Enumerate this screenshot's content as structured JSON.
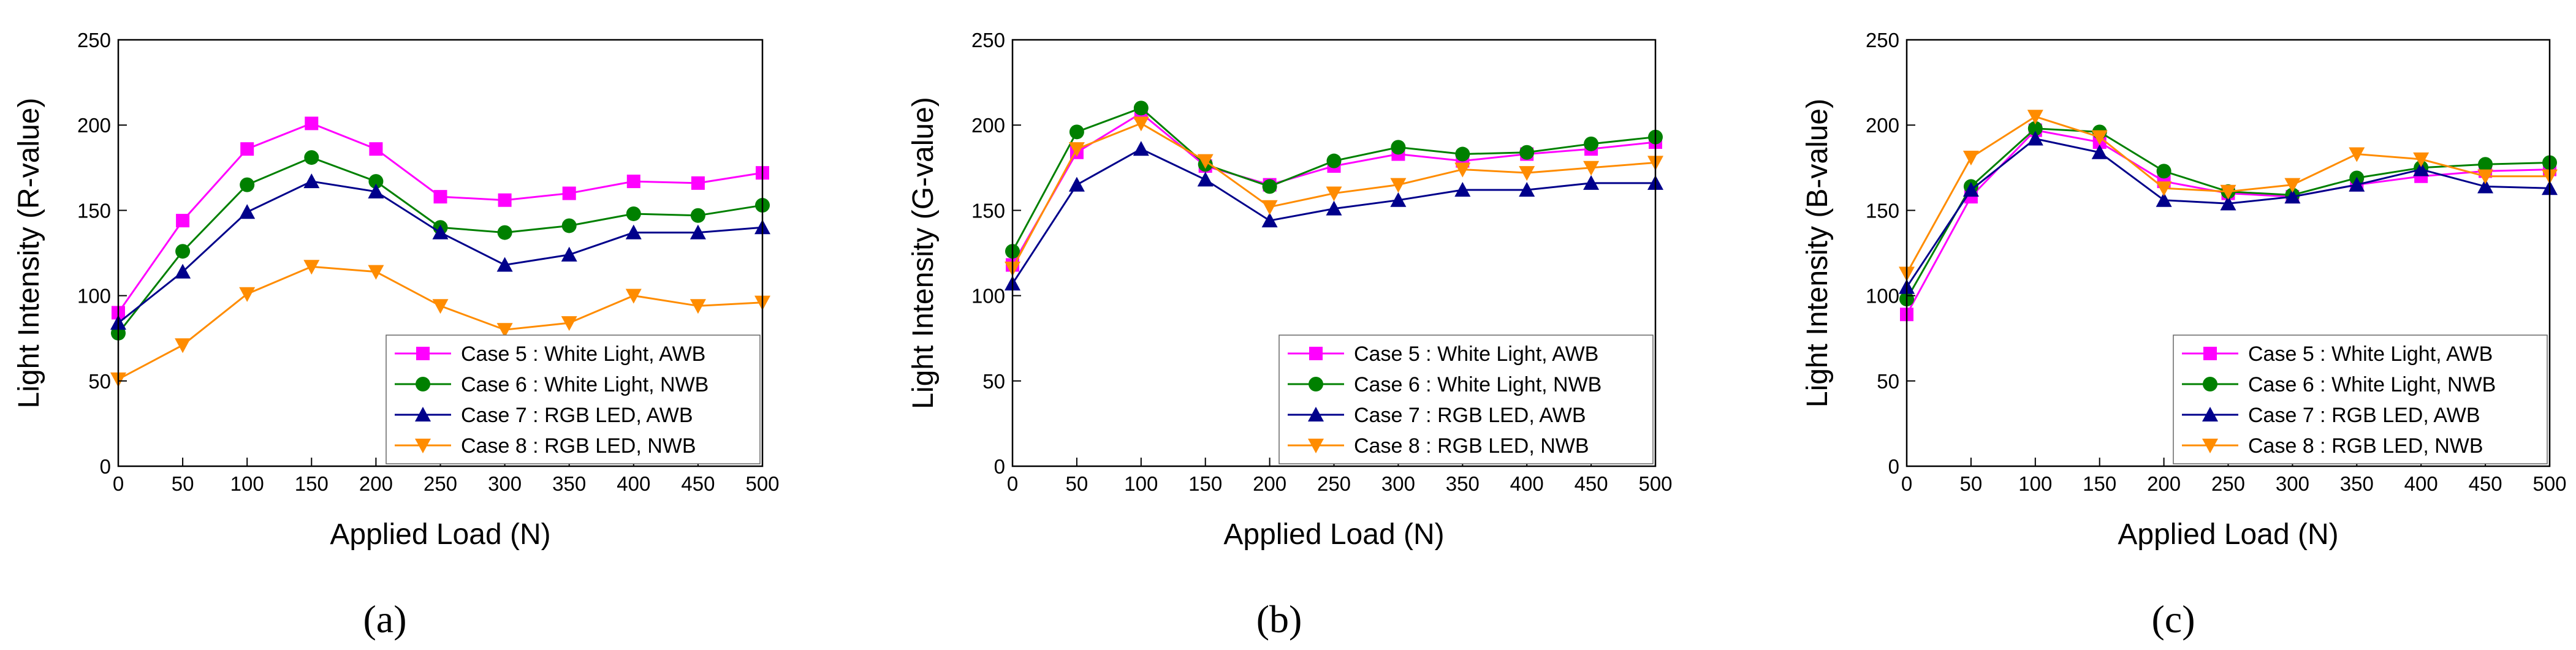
{
  "colors": {
    "case5": "#ff00ff",
    "case6": "#008000",
    "case7": "#00008b",
    "case8": "#ff8c00"
  },
  "chart_data": [
    {
      "type": "line",
      "panel_label": "(a)",
      "xlabel": "Applied Load (N)",
      "ylabel": "Light Intensity (R-value)",
      "xlim": [
        0,
        500
      ],
      "ylim": [
        0,
        250
      ],
      "xticks": [
        0,
        50,
        100,
        150,
        200,
        250,
        300,
        350,
        400,
        450,
        500
      ],
      "yticks": [
        0,
        50,
        100,
        150,
        200,
        250
      ],
      "grid": false,
      "legend_position": "bottom-right",
      "x": [
        0,
        50,
        100,
        150,
        200,
        250,
        300,
        350,
        400,
        450,
        500
      ],
      "series": [
        {
          "name": "Case 5 : White Light, AWB",
          "color": "#ff00ff",
          "marker": "square",
          "values": [
            90,
            144,
            186,
            201,
            186,
            158,
            156,
            160,
            167,
            166,
            172
          ]
        },
        {
          "name": "Case 6 : White Light, NWB",
          "color": "#008000",
          "marker": "circle",
          "values": [
            78,
            126,
            165,
            181,
            167,
            140,
            137,
            141,
            148,
            147,
            153
          ]
        },
        {
          "name": "Case 7 : RGB LED, AWB",
          "color": "#00008b",
          "marker": "triangle-up",
          "values": [
            84,
            114,
            149,
            167,
            161,
            137,
            118,
            124,
            137,
            137,
            140
          ]
        },
        {
          "name": "Case 8 : RGB LED, NWB",
          "color": "#ff8c00",
          "marker": "triangle-down",
          "values": [
            51,
            71,
            101,
            117,
            114,
            94,
            80,
            84,
            100,
            94,
            96
          ]
        }
      ]
    },
    {
      "type": "line",
      "panel_label": "(b)",
      "xlabel": "Applied Load (N)",
      "ylabel": "Light Intensity (G-value)",
      "xlim": [
        0,
        500
      ],
      "ylim": [
        0,
        250
      ],
      "xticks": [
        0,
        50,
        100,
        150,
        200,
        250,
        300,
        350,
        400,
        450,
        500
      ],
      "yticks": [
        0,
        50,
        100,
        150,
        200,
        250
      ],
      "grid": false,
      "legend_position": "bottom-right",
      "x": [
        0,
        50,
        100,
        150,
        200,
        250,
        300,
        350,
        400,
        450,
        500
      ],
      "series": [
        {
          "name": "Case 5 : White Light, AWB",
          "color": "#ff00ff",
          "marker": "square",
          "values": [
            118,
            184,
            207,
            176,
            165,
            176,
            183,
            179,
            183,
            186,
            190
          ]
        },
        {
          "name": "Case 6 : White Light, NWB",
          "color": "#008000",
          "marker": "circle",
          "values": [
            126,
            196,
            210,
            177,
            164,
            179,
            187,
            183,
            184,
            189,
            193
          ]
        },
        {
          "name": "Case 7 : RGB LED, AWB",
          "color": "#00008b",
          "marker": "triangle-up",
          "values": [
            107,
            165,
            186,
            168,
            144,
            151,
            156,
            162,
            162,
            166,
            166
          ]
        },
        {
          "name": "Case 8 : RGB LED, NWB",
          "color": "#ff8c00",
          "marker": "triangle-down",
          "values": [
            116,
            186,
            201,
            179,
            152,
            160,
            165,
            174,
            172,
            175,
            178
          ]
        }
      ]
    },
    {
      "type": "line",
      "panel_label": "(c)",
      "xlabel": "Applied Load (N)",
      "ylabel": "Light Intensity (B-value)",
      "xlim": [
        0,
        500
      ],
      "ylim": [
        0,
        250
      ],
      "xticks": [
        0,
        50,
        100,
        150,
        200,
        250,
        300,
        350,
        400,
        450,
        500
      ],
      "yticks": [
        0,
        50,
        100,
        150,
        200,
        250
      ],
      "grid": false,
      "legend_position": "bottom-right",
      "x": [
        0,
        50,
        100,
        150,
        200,
        250,
        300,
        350,
        400,
        450,
        500
      ],
      "series": [
        {
          "name": "Case 5 : White Light, AWB",
          "color": "#ff00ff",
          "marker": "square",
          "values": [
            89,
            158,
            197,
            190,
            167,
            160,
            158,
            165,
            170,
            173,
            174
          ]
        },
        {
          "name": "Case 6 : White Light, NWB",
          "color": "#008000",
          "marker": "circle",
          "values": [
            98,
            164,
            198,
            196,
            173,
            161,
            159,
            169,
            175,
            177,
            178
          ]
        },
        {
          "name": "Case 7 : RGB LED, AWB",
          "color": "#00008b",
          "marker": "triangle-up",
          "values": [
            105,
            162,
            192,
            184,
            156,
            154,
            158,
            165,
            174,
            164,
            163
          ]
        },
        {
          "name": "Case 8 : RGB LED, NWB",
          "color": "#ff8c00",
          "marker": "triangle-down",
          "values": [
            113,
            181,
            205,
            193,
            163,
            161,
            165,
            183,
            180,
            170,
            170
          ]
        }
      ]
    }
  ]
}
